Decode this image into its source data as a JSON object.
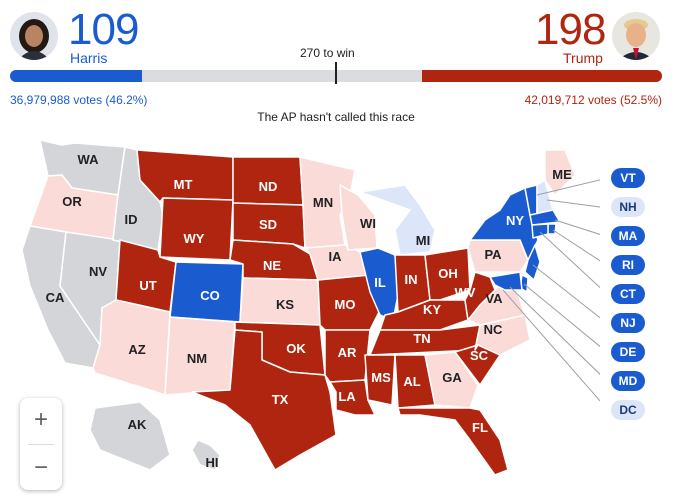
{
  "harris": {
    "name": "Harris",
    "electoral": "109",
    "votes": "36,979,988 votes (46.2%)",
    "share": 0.202
  },
  "trump": {
    "name": "Trump",
    "electoral": "198",
    "votes": "42,019,712 votes (52.5%)",
    "share": 0.368
  },
  "threshold_label": "270 to win",
  "race_status": "The AP hasn't called this race",
  "colors": {
    "dem": "#1a5cd0",
    "lean_dem": "#dde6f8",
    "rep": "#b0250f",
    "lean_rep": "#fadbd7",
    "uncalled": "#d4d5d8",
    "zoom_icon": "#5f6368"
  },
  "states": [
    {
      "abbr": "WA",
      "status": "uncalled"
    },
    {
      "abbr": "OR",
      "status": "lean_rep"
    },
    {
      "abbr": "CA",
      "status": "uncalled"
    },
    {
      "abbr": "NV",
      "status": "uncalled"
    },
    {
      "abbr": "ID",
      "status": "uncalled"
    },
    {
      "abbr": "MT",
      "status": "rep"
    },
    {
      "abbr": "WY",
      "status": "rep"
    },
    {
      "abbr": "UT",
      "status": "rep"
    },
    {
      "abbr": "AZ",
      "status": "lean_rep"
    },
    {
      "abbr": "CO",
      "status": "dem"
    },
    {
      "abbr": "NM",
      "status": "lean_rep"
    },
    {
      "abbr": "ND",
      "status": "rep"
    },
    {
      "abbr": "SD",
      "status": "rep"
    },
    {
      "abbr": "NE",
      "status": "rep"
    },
    {
      "abbr": "KS",
      "status": "lean_rep"
    },
    {
      "abbr": "OK",
      "status": "rep"
    },
    {
      "abbr": "TX",
      "status": "rep"
    },
    {
      "abbr": "MN",
      "status": "lean_rep"
    },
    {
      "abbr": "IA",
      "status": "lean_rep"
    },
    {
      "abbr": "MO",
      "status": "rep"
    },
    {
      "abbr": "AR",
      "status": "rep"
    },
    {
      "abbr": "LA",
      "status": "rep"
    },
    {
      "abbr": "WI",
      "status": "lean_rep"
    },
    {
      "abbr": "IL",
      "status": "dem"
    },
    {
      "abbr": "MI",
      "status": "lean_dem"
    },
    {
      "abbr": "IN",
      "status": "rep"
    },
    {
      "abbr": "OH",
      "status": "rep"
    },
    {
      "abbr": "KY",
      "status": "rep"
    },
    {
      "abbr": "TN",
      "status": "rep"
    },
    {
      "abbr": "MS",
      "status": "rep"
    },
    {
      "abbr": "AL",
      "status": "rep"
    },
    {
      "abbr": "GA",
      "status": "lean_rep"
    },
    {
      "abbr": "FL",
      "status": "rep"
    },
    {
      "abbr": "SC",
      "status": "rep"
    },
    {
      "abbr": "NC",
      "status": "lean_rep"
    },
    {
      "abbr": "VA",
      "status": "lean_rep"
    },
    {
      "abbr": "WV",
      "status": "rep"
    },
    {
      "abbr": "PA",
      "status": "lean_rep"
    },
    {
      "abbr": "NY",
      "status": "dem"
    },
    {
      "abbr": "ME",
      "status": "lean_rep"
    },
    {
      "abbr": "AK",
      "status": "uncalled"
    },
    {
      "abbr": "HI",
      "status": "uncalled"
    }
  ],
  "legend_states": [
    {
      "abbr": "VT",
      "status": "dem"
    },
    {
      "abbr": "NH",
      "status": "lean_dem"
    },
    {
      "abbr": "MA",
      "status": "dem"
    },
    {
      "abbr": "RI",
      "status": "dem"
    },
    {
      "abbr": "CT",
      "status": "dem"
    },
    {
      "abbr": "NJ",
      "status": "dem"
    },
    {
      "abbr": "DE",
      "status": "dem"
    },
    {
      "abbr": "MD",
      "status": "dem"
    },
    {
      "abbr": "DC",
      "status": "lean_dem"
    }
  ],
  "zoom": {
    "in": "+",
    "out": "−"
  }
}
